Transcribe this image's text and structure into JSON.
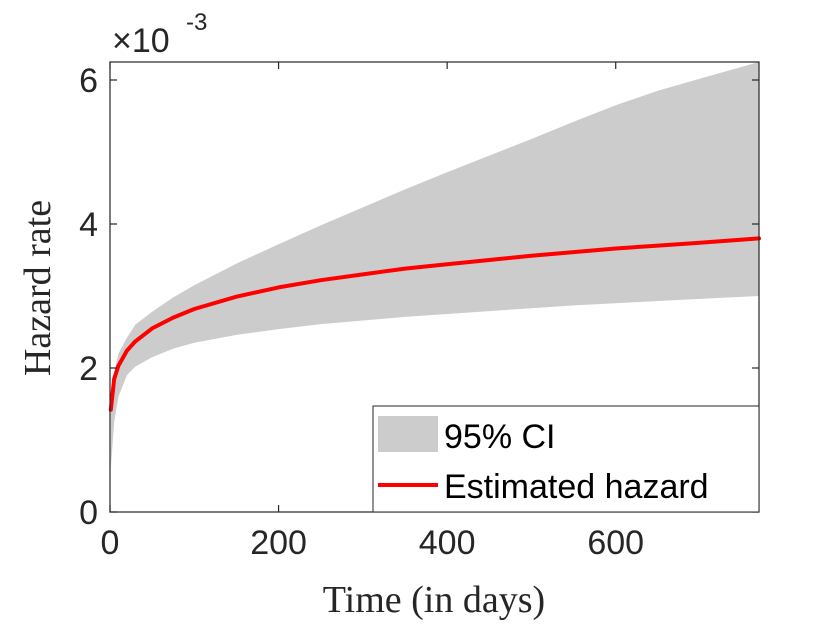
{
  "chart_data": {
    "type": "area",
    "title": "",
    "xlabel": "Time (in days)",
    "ylabel": "Hazard rate",
    "xlim": [
      0,
      770
    ],
    "ylim": [
      0,
      6.25
    ],
    "y_scale_label": {
      "base": "×10",
      "exponent": "-3"
    },
    "xticks": [
      0,
      200,
      400,
      600
    ],
    "yticks": [
      0,
      2,
      4,
      6
    ],
    "xtick_labels": [
      "0",
      "200",
      "400",
      "600"
    ],
    "ytick_labels": [
      "0",
      "2",
      "4",
      "6"
    ],
    "legend_position": "bottom-right",
    "series": [
      {
        "name": "95% CI",
        "kind": "band",
        "color": "#cccccc",
        "x": [
          1,
          5,
          10,
          20,
          30,
          50,
          75,
          100,
          150,
          200,
          250,
          300,
          350,
          400,
          450,
          500,
          550,
          600,
          650,
          700,
          770
        ],
        "lower": [
          0.6,
          1.25,
          1.6,
          1.9,
          2.02,
          2.15,
          2.27,
          2.35,
          2.46,
          2.54,
          2.61,
          2.66,
          2.71,
          2.75,
          2.79,
          2.83,
          2.87,
          2.9,
          2.93,
          2.96,
          3.0
        ],
        "upper": [
          1.6,
          1.95,
          2.2,
          2.42,
          2.6,
          2.78,
          2.98,
          3.15,
          3.45,
          3.72,
          3.98,
          4.23,
          4.48,
          4.72,
          4.95,
          5.18,
          5.42,
          5.65,
          5.85,
          6.02,
          6.25
        ]
      },
      {
        "name": "Estimated hazard",
        "kind": "line",
        "color": "#ff0000",
        "x": [
          1,
          5,
          10,
          20,
          30,
          50,
          75,
          100,
          150,
          200,
          250,
          300,
          350,
          400,
          450,
          500,
          550,
          600,
          650,
          700,
          770
        ],
        "y": [
          1.42,
          1.85,
          2.03,
          2.24,
          2.37,
          2.55,
          2.7,
          2.82,
          2.99,
          3.12,
          3.22,
          3.3,
          3.38,
          3.44,
          3.5,
          3.56,
          3.61,
          3.66,
          3.7,
          3.74,
          3.8
        ]
      }
    ],
    "legend": [
      "95% CI",
      "Estimated hazard"
    ]
  }
}
